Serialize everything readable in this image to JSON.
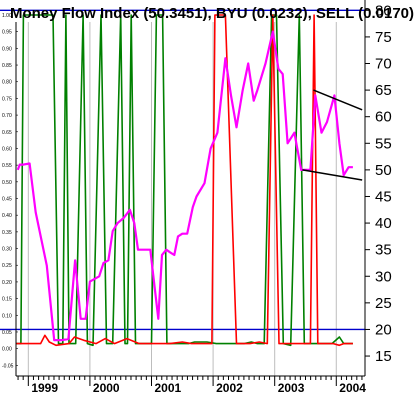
{
  "chart_data": {
    "type": "line",
    "title": "Money Flow Index (50.3451), BYU (0.0232), SELL (0.0170)",
    "x_tick_labels": [
      "1999",
      "2000",
      "2001",
      "2002",
      "2003",
      "2004"
    ],
    "x_range": [
      1998.8,
      2004.45
    ],
    "y_right": {
      "range": [
        12,
        81
      ],
      "ticks": [
        15,
        20,
        25,
        30,
        35,
        40,
        45,
        50,
        55,
        60,
        65,
        70,
        75,
        80
      ],
      "reference_lines": [
        20,
        80
      ],
      "reference_color": "#0000cc"
    },
    "y_left": {
      "range": [
        -0.07,
        1.03
      ],
      "tick_labels": [
        "1.00",
        "0.95",
        "0.90",
        "0.85",
        "0.80",
        "0.75",
        "0.70",
        "0.65",
        "0.60",
        "0.55",
        "0.50",
        "0.45",
        "0.40",
        "0.35",
        "0.30",
        "0.25",
        "0.20",
        "0.15",
        "0.10",
        "0.05",
        "0.00",
        "-0.05"
      ]
    },
    "series": [
      {
        "axis": "right",
        "color": "#ff00ff",
        "points": [
          [
            1998.83,
            50.0
          ],
          [
            1998.86,
            51.0
          ],
          [
            1998.92,
            51.0
          ],
          [
            1999.02,
            51.2
          ],
          [
            1999.12,
            42.0
          ],
          [
            1999.3,
            32.0
          ],
          [
            1999.42,
            18.0
          ],
          [
            1999.55,
            18.0
          ],
          [
            1999.65,
            18.2
          ],
          [
            1999.76,
            33.0
          ],
          [
            1999.85,
            22.0
          ],
          [
            1999.93,
            22.0
          ],
          [
            2000.0,
            29.0
          ],
          [
            2000.15,
            30.0
          ],
          [
            2000.22,
            32.5
          ],
          [
            2000.3,
            33.0
          ],
          [
            2000.37,
            38.5
          ],
          [
            2000.45,
            40.0
          ],
          [
            2000.55,
            41.0
          ],
          [
            2000.65,
            42.5
          ],
          [
            2000.72,
            40.0
          ],
          [
            2000.78,
            35.0
          ],
          [
            2000.9,
            35.0
          ],
          [
            2000.98,
            35.0
          ],
          [
            2001.05,
            28.0
          ],
          [
            2001.11,
            22.0
          ],
          [
            2001.17,
            34.0
          ],
          [
            2001.24,
            35.0
          ],
          [
            2001.3,
            34.5
          ],
          [
            2001.37,
            34.0
          ],
          [
            2001.43,
            37.5
          ],
          [
            2001.5,
            38.0
          ],
          [
            2001.58,
            38.0
          ],
          [
            2001.67,
            43.0
          ],
          [
            2001.73,
            45.0
          ],
          [
            2001.86,
            47.5
          ],
          [
            2001.96,
            54.0
          ],
          [
            2002.07,
            57.0
          ],
          [
            2002.2,
            71.0
          ],
          [
            2002.29,
            64.0
          ],
          [
            2002.38,
            58.0
          ],
          [
            2002.48,
            65.0
          ],
          [
            2002.57,
            70.0
          ],
          [
            2002.66,
            63.0
          ],
          [
            2002.72,
            65.0
          ],
          [
            2002.85,
            70.0
          ],
          [
            2002.97,
            76.0
          ],
          [
            2003.06,
            69.0
          ],
          [
            2003.13,
            68.0
          ],
          [
            2003.21,
            55.0
          ],
          [
            2003.32,
            57.0
          ],
          [
            2003.43,
            50.0
          ],
          [
            2003.58,
            50.0
          ],
          [
            2003.66,
            64.0
          ],
          [
            2003.76,
            57.0
          ],
          [
            2003.85,
            59.0
          ],
          [
            2003.97,
            64.0
          ],
          [
            2004.05,
            55.0
          ],
          [
            2004.12,
            49.0
          ],
          [
            2004.2,
            50.5
          ],
          [
            2004.27,
            50.5
          ]
        ]
      },
      {
        "axis": "left",
        "color": "#008000",
        "points": [
          [
            1998.8,
            0.015
          ],
          [
            1998.88,
            0.015
          ],
          [
            1998.92,
            1.0
          ],
          [
            1999.4,
            1.0
          ],
          [
            1999.49,
            0.015
          ],
          [
            1999.56,
            0.015
          ],
          [
            1999.61,
            1.0
          ],
          [
            1999.66,
            0.015
          ],
          [
            1999.77,
            0.015
          ],
          [
            1999.89,
            1.0
          ],
          [
            1999.96,
            0.015
          ],
          [
            2000.05,
            0.01
          ],
          [
            2000.18,
            1.0
          ],
          [
            2000.27,
            0.015
          ],
          [
            2000.37,
            0.015
          ],
          [
            2000.5,
            1.0
          ],
          [
            2000.57,
            0.015
          ],
          [
            2000.61,
            0.015
          ],
          [
            2000.67,
            1.0
          ],
          [
            2000.74,
            0.015
          ],
          [
            2001.0,
            0.015
          ],
          [
            2001.08,
            1.0
          ],
          [
            2001.18,
            1.0
          ],
          [
            2001.25,
            0.015
          ],
          [
            2001.6,
            0.015
          ],
          [
            2001.7,
            0.02
          ],
          [
            2001.9,
            0.02
          ],
          [
            2002.05,
            0.015
          ],
          [
            2002.5,
            0.015
          ],
          [
            2002.62,
            0.02
          ],
          [
            2002.72,
            0.015
          ],
          [
            2002.83,
            0.015
          ],
          [
            2002.95,
            1.0
          ],
          [
            2003.03,
            1.0
          ],
          [
            2003.14,
            0.015
          ],
          [
            2003.26,
            0.01
          ],
          [
            2003.4,
            1.0
          ],
          [
            2003.48,
            0.015
          ],
          [
            2003.65,
            0.015
          ],
          [
            2003.76,
            0.015
          ],
          [
            2003.93,
            0.015
          ],
          [
            2004.05,
            0.035
          ],
          [
            2004.12,
            0.015
          ],
          [
            2004.27,
            0.015
          ]
        ]
      },
      {
        "axis": "left",
        "color": "#ff0000",
        "points": [
          [
            1998.8,
            0.015
          ],
          [
            1999.2,
            0.015
          ],
          [
            1999.27,
            0.04
          ],
          [
            1999.34,
            0.02
          ],
          [
            1999.45,
            0.01
          ],
          [
            1999.66,
            0.015
          ],
          [
            1999.75,
            0.035
          ],
          [
            1999.9,
            0.025
          ],
          [
            2000.1,
            0.015
          ],
          [
            2000.25,
            0.03
          ],
          [
            2000.4,
            0.015
          ],
          [
            2000.6,
            0.03
          ],
          [
            2000.8,
            0.015
          ],
          [
            2001.0,
            0.015
          ],
          [
            2001.3,
            0.015
          ],
          [
            2001.5,
            0.02
          ],
          [
            2001.65,
            0.015
          ],
          [
            2001.85,
            0.015
          ],
          [
            2001.98,
            0.015
          ],
          [
            2002.03,
            1.0
          ],
          [
            2002.2,
            1.0
          ],
          [
            2002.38,
            0.015
          ],
          [
            2002.6,
            0.015
          ],
          [
            2002.75,
            0.02
          ],
          [
            2002.88,
            0.015
          ],
          [
            2002.97,
            1.0
          ],
          [
            2003.07,
            0.015
          ],
          [
            2003.2,
            0.015
          ],
          [
            2003.45,
            0.015
          ],
          [
            2003.58,
            0.015
          ],
          [
            2003.64,
            1.0
          ],
          [
            2003.7,
            0.015
          ],
          [
            2003.8,
            0.015
          ],
          [
            2003.95,
            0.015
          ],
          [
            2004.05,
            0.01
          ],
          [
            2004.12,
            0.015
          ],
          [
            2004.27,
            0.015
          ]
        ]
      }
    ],
    "trendlines": [
      {
        "color": "#000000",
        "points": [
          [
            2003.63,
            65.0
          ],
          [
            2004.42,
            61.3
          ]
        ]
      },
      {
        "color": "#000000",
        "points": [
          [
            2003.45,
            50.0
          ],
          [
            2004.42,
            48.1
          ]
        ]
      }
    ]
  }
}
